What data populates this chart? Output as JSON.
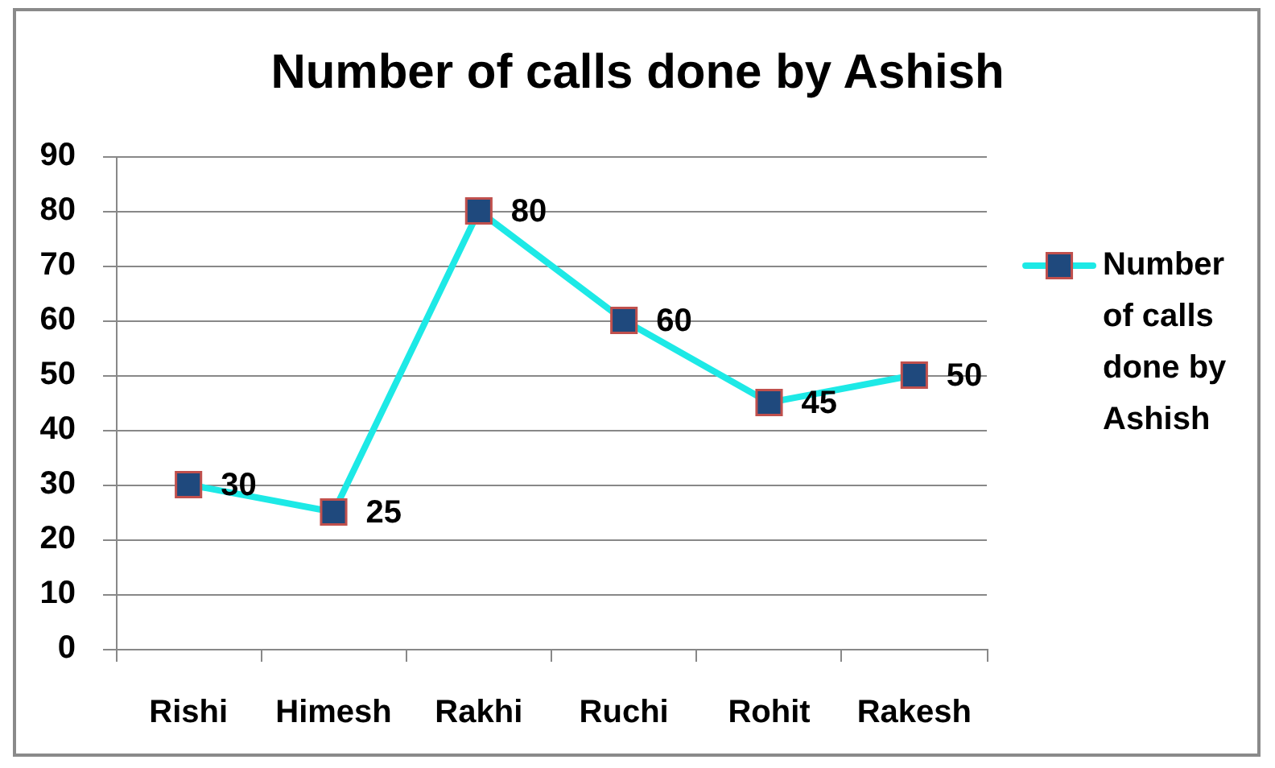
{
  "chart_data": {
    "type": "line",
    "title": "Number of calls done by Ashish",
    "categories": [
      "Rishi",
      "Himesh",
      "Rakhi",
      "Ruchi",
      "Rohit",
      "Rakesh"
    ],
    "series": [
      {
        "name": "Number of calls done by Ashish",
        "color": "#1de9e6",
        "values": [
          30,
          25,
          80,
          60,
          45,
          50
        ]
      }
    ],
    "ylim": [
      0,
      90
    ],
    "yticks": [
      0,
      10,
      20,
      30,
      40,
      50,
      60,
      70,
      80,
      90
    ],
    "grid": "y",
    "legend": "right",
    "marker": "square",
    "line_style": "solid",
    "data_labels": true
  }
}
